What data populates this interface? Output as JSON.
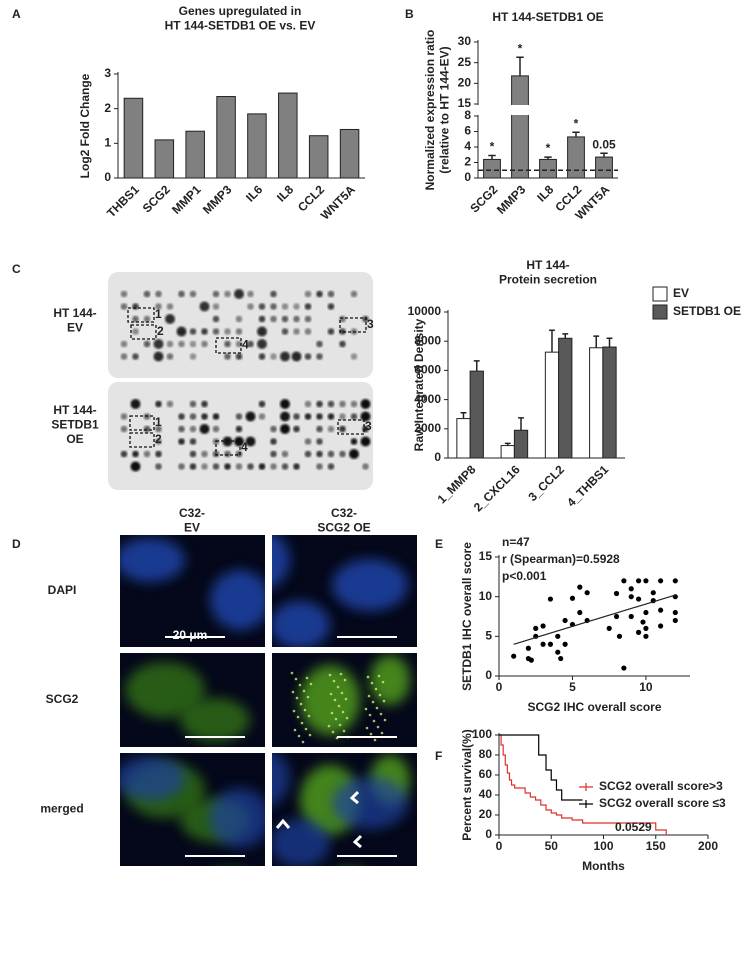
{
  "panel_letters": [
    "A",
    "B",
    "C",
    "D",
    "E",
    "F"
  ],
  "chart_data": [
    {
      "type": "bar",
      "title": "Genes upregulated in\nHT 144-SETDB1 OE vs. EV",
      "ylabel": "Log2 Fold Change",
      "categories": [
        "THBS1",
        "SCG2",
        "MMP1",
        "MMP3",
        "IL6",
        "IL8",
        "CCL2",
        "WNT5A"
      ],
      "values": [
        2.3,
        1.1,
        1.35,
        2.35,
        1.85,
        2.45,
        1.22,
        1.4
      ],
      "color": "#808080",
      "ylim": [
        0,
        3
      ],
      "yticks": [
        0,
        1,
        2,
        3
      ]
    },
    {
      "type": "bar",
      "title": "HT 144-SETDB1 OE",
      "ylabel": "Normalized expression ratio\n(relative to HT 144-EV)",
      "categories": [
        "SCG2",
        "MMP3",
        "IL8",
        "CCL2",
        "WNT5A"
      ],
      "values": [
        2.4,
        21.8,
        2.4,
        5.3,
        2.7
      ],
      "errors": [
        0.5,
        4.5,
        0.3,
        0.6,
        0.5
      ],
      "bar_labels": [
        "*",
        "*",
        "*",
        "*",
        "0.05"
      ],
      "color": "#808080",
      "ylim": [
        0,
        30
      ],
      "axis_break": [
        8,
        15
      ],
      "yticks": [
        0,
        2,
        4,
        6,
        8,
        15,
        20,
        25,
        30
      ],
      "reference_line": 1
    },
    {
      "type": "bar",
      "title": "HT 144-\nProtein secretion",
      "ylabel": "Raw Integrated Density",
      "categories": [
        "1_MMP8",
        "2_CXCL16",
        "3_CCL2",
        "4_THBS1"
      ],
      "series": [
        {
          "name": "EV",
          "color": "#ffffff",
          "values": [
            2700,
            850,
            7250,
            7550
          ],
          "errors": [
            400,
            150,
            1500,
            800
          ]
        },
        {
          "name": "SETDB1 OE",
          "color": "#595959",
          "values": [
            5950,
            1900,
            8200,
            7600
          ],
          "errors": [
            700,
            850,
            300,
            600
          ]
        }
      ],
      "ylim": [
        0,
        10000
      ],
      "yticks": [
        0,
        2000,
        4000,
        6000,
        8000,
        10000
      ],
      "legend": "upper right"
    },
    {
      "type": "scatter",
      "xlabel": "SCG2 IHC overall score",
      "ylabel": "SETDB1 IHC overall score",
      "annotations": [
        "n=47",
        "r (Spearman)=0.5928",
        "p<0.001"
      ],
      "color": "#000000",
      "x": [
        1,
        2,
        2.2,
        2,
        2.5,
        3,
        3,
        2.5,
        3.5,
        3.5,
        4,
        4,
        4.2,
        4.5,
        4.5,
        5,
        5,
        5.5,
        5.5,
        6,
        6,
        7.5,
        8,
        8,
        8.2,
        8.5,
        8.5,
        9,
        9,
        9,
        9.5,
        9.5,
        9.5,
        9.8,
        10,
        10,
        10,
        10,
        10.5,
        10.5,
        11,
        11,
        11,
        12,
        12,
        12,
        12
      ],
      "values": [
        2.5,
        2.2,
        2,
        3.5,
        6,
        4,
        6.3,
        5,
        4,
        9.7,
        3,
        5,
        2.2,
        7,
        4,
        9.8,
        6.5,
        11.2,
        8,
        7,
        10.5,
        6,
        7.5,
        10.4,
        5,
        1,
        12,
        11,
        7.5,
        10,
        12,
        9.7,
        5.5,
        6.8,
        6,
        8,
        5,
        12,
        9.5,
        10.5,
        12,
        6.3,
        8.3,
        12,
        10,
        8,
        7
      ],
      "fit": {
        "x": [
          1,
          12
        ],
        "y": [
          4,
          10.2
        ]
      },
      "xlim": [
        0,
        13
      ],
      "xticks": [
        0,
        5,
        10
      ],
      "ylim": [
        0,
        15
      ],
      "yticks": [
        0,
        5,
        10,
        15
      ]
    },
    {
      "type": "line",
      "step": true,
      "xlabel": "Months",
      "ylabel": "Percent survival(%)",
      "annotations": [
        "0.0529"
      ],
      "legend": "center right",
      "series": [
        {
          "name": "SCG2 overall score>3",
          "color": "#e0302a",
          "x": [
            0,
            2,
            4,
            6,
            8,
            10,
            12,
            15,
            20,
            25,
            30,
            35,
            40,
            45,
            50,
            55,
            60,
            70,
            80,
            100,
            120,
            150,
            160
          ],
          "values": [
            100,
            90,
            80,
            70,
            62,
            55,
            50,
            47,
            47,
            42,
            38,
            35,
            30,
            25,
            22,
            20,
            17,
            15,
            12,
            12,
            12,
            5,
            0
          ]
        },
        {
          "name": "SCG2 overall score ≤3",
          "color": "#000000",
          "x": [
            0,
            30,
            38,
            45,
            50,
            55,
            60,
            80
          ],
          "values": [
            100,
            100,
            80,
            65,
            55,
            45,
            35,
            35
          ]
        }
      ],
      "xlim": [
        0,
        200
      ],
      "xticks": [
        0,
        50,
        100,
        150,
        200
      ],
      "ylim": [
        0,
        100
      ],
      "yticks": [
        0,
        20,
        40,
        60,
        80,
        100
      ]
    }
  ],
  "blot": {
    "rows": [
      "HT 144-\nEV",
      "HT 144-\nSETDB1\nOE"
    ],
    "spots": [
      "1",
      "2",
      "3",
      "4"
    ]
  },
  "micro": {
    "columns": [
      "C32-\nEV",
      "C32-\nSCG2 OE"
    ],
    "rows": [
      "DAPI",
      "SCG2",
      "merged"
    ],
    "scale_bar": "20 μm"
  }
}
